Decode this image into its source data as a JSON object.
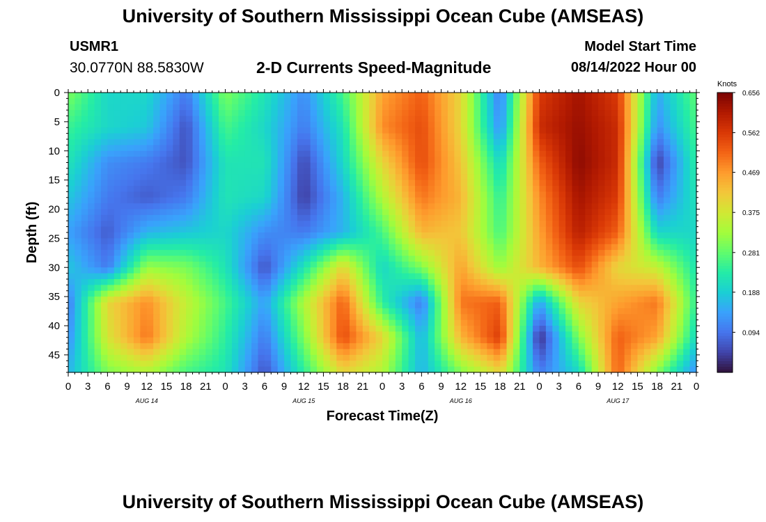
{
  "header": {
    "title": "University of Southern Mississippi Ocean Cube (AMSEAS)",
    "station_id": "USMR1",
    "coordinates": "30.0770N  88.5830W",
    "subtitle": "2-D Currents Speed-Magnitude",
    "model_start_label": "Model Start Time",
    "model_start_value": "08/14/2022 Hour 00"
  },
  "footer": {
    "title": "University of Southern Mississippi Ocean Cube (AMSEAS)"
  },
  "chart_data": {
    "type": "heatmap",
    "title": "2-D Currents Speed-Magnitude",
    "xlabel": "Forecast Time(Z)",
    "ylabel": "Depth (ft)",
    "x_hours": [
      0,
      96
    ],
    "x_tick_labels": [
      "0",
      "3",
      "6",
      "9",
      "12",
      "15",
      "18",
      "21",
      "0",
      "3",
      "6",
      "9",
      "12",
      "15",
      "18",
      "21",
      "0",
      "3",
      "6",
      "9",
      "12",
      "15",
      "18",
      "21",
      "0",
      "3",
      "6",
      "9",
      "12",
      "15",
      "18",
      "21",
      "0"
    ],
    "day_labels": [
      "AUG 14",
      "AUG 15",
      "AUG 16",
      "AUG 17"
    ],
    "y_range_ft": [
      0,
      48
    ],
    "y_tick_labels": [
      "0",
      "5",
      "10",
      "15",
      "20",
      "25",
      "30",
      "35",
      "40",
      "45"
    ],
    "y_tick_values": [
      0,
      5,
      10,
      15,
      20,
      25,
      30,
      35,
      40,
      45
    ],
    "colorbar": {
      "unit_label": "Knots",
      "range": [
        0,
        0.656
      ],
      "tick_labels": [
        "0.656",
        "0.562",
        "0.469",
        "0.375",
        "0.281",
        "0.188",
        "0.094"
      ],
      "tick_values": [
        0.656,
        0.562,
        0.469,
        0.375,
        0.281,
        0.188,
        0.094
      ],
      "palette": [
        "#30123b",
        "#4145ab",
        "#4675ed",
        "#39a2fc",
        "#1bcfd4",
        "#24eca6",
        "#61fc6c",
        "#a4fc3b",
        "#d1e834",
        "#f3c63a",
        "#fe9b2d",
        "#f36315",
        "#d93806",
        "#b11901",
        "#7a0403"
      ]
    },
    "speed_field": {
      "description": "approximate current speed (knots) sampled every 6 hours (17 columns, hour 0..96) at depths 0,6,12,18,24,30,36,42,48 ft",
      "depths_ft": [
        0,
        6,
        12,
        18,
        24,
        30,
        36,
        42,
        48
      ],
      "hours": [
        0,
        6,
        12,
        18,
        24,
        30,
        36,
        42,
        48,
        54,
        60,
        66,
        72,
        78,
        84,
        90,
        96
      ],
      "values": [
        [
          0.3,
          0.2,
          0.2,
          0.1,
          0.3,
          0.22,
          0.12,
          0.26,
          0.46,
          0.52,
          0.4,
          0.1,
          0.56,
          0.62,
          0.56,
          0.15,
          0.28
        ],
        [
          0.25,
          0.2,
          0.18,
          0.06,
          0.26,
          0.2,
          0.1,
          0.22,
          0.48,
          0.54,
          0.4,
          0.12,
          0.58,
          0.63,
          0.58,
          0.12,
          0.26
        ],
        [
          0.22,
          0.12,
          0.1,
          0.06,
          0.22,
          0.22,
          0.05,
          0.2,
          0.4,
          0.54,
          0.42,
          0.2,
          0.52,
          0.64,
          0.58,
          0.04,
          0.24
        ],
        [
          0.18,
          0.1,
          0.07,
          0.1,
          0.22,
          0.2,
          0.04,
          0.16,
          0.34,
          0.5,
          0.44,
          0.24,
          0.48,
          0.62,
          0.56,
          0.1,
          0.22
        ],
        [
          0.14,
          0.07,
          0.16,
          0.18,
          0.2,
          0.12,
          0.1,
          0.16,
          0.26,
          0.44,
          0.42,
          0.26,
          0.46,
          0.6,
          0.52,
          0.2,
          0.2
        ],
        [
          0.18,
          0.1,
          0.32,
          0.3,
          0.22,
          0.06,
          0.22,
          0.4,
          0.2,
          0.3,
          0.46,
          0.32,
          0.44,
          0.54,
          0.4,
          0.36,
          0.22
        ],
        [
          0.1,
          0.4,
          0.48,
          0.36,
          0.26,
          0.14,
          0.34,
          0.52,
          0.24,
          0.1,
          0.5,
          0.52,
          0.14,
          0.4,
          0.46,
          0.5,
          0.24
        ],
        [
          0.12,
          0.38,
          0.5,
          0.34,
          0.24,
          0.1,
          0.3,
          0.54,
          0.4,
          0.16,
          0.44,
          0.56,
          0.02,
          0.3,
          0.52,
          0.46,
          0.2
        ],
        [
          0.16,
          0.3,
          0.34,
          0.26,
          0.22,
          0.06,
          0.24,
          0.4,
          0.34,
          0.16,
          0.3,
          0.4,
          0.1,
          0.2,
          0.52,
          0.3,
          0.12
        ]
      ]
    }
  }
}
